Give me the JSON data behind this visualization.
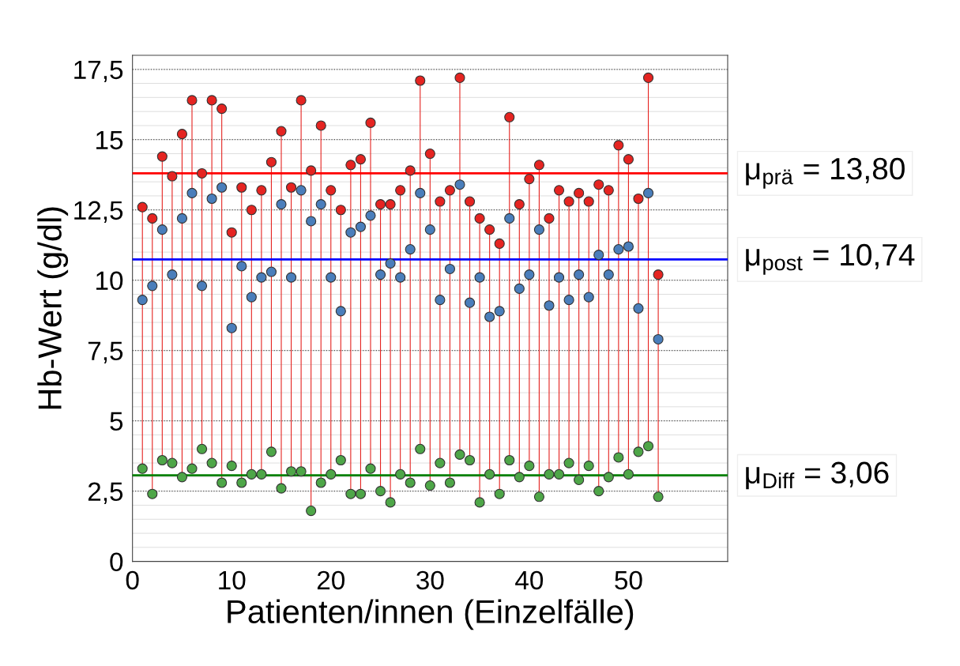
{
  "chart_data": {
    "type": "scatter",
    "xlabel": "Patienten/innen (Einzelfälle)",
    "ylabel": "Hb-Wert (g/dl)",
    "x": [
      1,
      2,
      3,
      4,
      5,
      6,
      7,
      8,
      9,
      10,
      11,
      12,
      13,
      14,
      15,
      16,
      17,
      18,
      19,
      20,
      21,
      22,
      23,
      24,
      25,
      26,
      27,
      28,
      29,
      30,
      31,
      32,
      33,
      34,
      35,
      36,
      37,
      38,
      39,
      40,
      41,
      42,
      43,
      44,
      45,
      46,
      47,
      48,
      49,
      50,
      51,
      52,
      53
    ],
    "series": [
      {
        "type": "lollipop",
        "color": "#e52421",
        "values": [
          12.6,
          12.2,
          14.4,
          13.7,
          15.2,
          16.4,
          13.8,
          16.4,
          16.1,
          11.7,
          13.3,
          12.5,
          13.2,
          14.2,
          15.3,
          13.3,
          16.4,
          13.9,
          15.5,
          13.2,
          12.5,
          14.1,
          14.3,
          15.6,
          12.7,
          12.7,
          13.2,
          13.9,
          17.1,
          14.5,
          12.8,
          13.2,
          17.2,
          12.8,
          12.2,
          11.8,
          11.3,
          15.8,
          12.7,
          13.6,
          14.1,
          12.2,
          13.2,
          12.8,
          13.1,
          12.8,
          13.4,
          13.2,
          14.8,
          14.3,
          12.9,
          17.2,
          10.2
        ]
      },
      {
        "color": "#4a7ebb",
        "values": [
          9.3,
          9.8,
          11.8,
          10.2,
          12.2,
          13.1,
          9.8,
          12.9,
          13.3,
          8.3,
          10.5,
          9.4,
          10.1,
          10.3,
          12.7,
          10.1,
          13.2,
          12.1,
          12.7,
          10.1,
          8.9,
          11.7,
          11.9,
          12.3,
          10.2,
          10.6,
          10.1,
          11.1,
          13.1,
          11.8,
          9.3,
          10.4,
          13.4,
          9.2,
          10.1,
          8.7,
          8.9,
          12.2,
          9.7,
          10.2,
          11.8,
          9.1,
          10.1,
          9.3,
          10.2,
          9.4,
          10.9,
          10.2,
          11.1,
          11.2,
          9.0,
          13.1,
          7.9
        ]
      },
      {
        "color": "#4ea648",
        "values": [
          3.3,
          2.4,
          3.6,
          3.5,
          3.0,
          3.3,
          4.0,
          3.5,
          2.8,
          3.4,
          2.8,
          3.1,
          3.1,
          3.9,
          2.6,
          3.2,
          3.2,
          1.8,
          2.8,
          3.1,
          3.6,
          2.4,
          2.4,
          3.3,
          2.5,
          2.1,
          3.1,
          2.8,
          4.0,
          2.7,
          3.5,
          2.8,
          3.8,
          3.6,
          2.1,
          3.1,
          2.4,
          3.6,
          3.0,
          3.4,
          2.3,
          3.1,
          3.1,
          3.5,
          2.9,
          3.4,
          2.5,
          3.0,
          3.7,
          3.1,
          3.9,
          4.1,
          2.3
        ]
      }
    ],
    "ref_lines": [
      {
        "axis": "y",
        "value": 13.8,
        "label": "μ$_{prä}$ = 13,80",
        "color": "#ff0000"
      },
      {
        "axis": "y",
        "value": 10.74,
        "label": "μ$_{post}$ = 10,74",
        "color": "#0000ff"
      },
      {
        "axis": "y",
        "value": 3.06,
        "label": "μ$_{Diff}$ = 3,06",
        "color": "#008000"
      }
    ],
    "xlim": [
      0,
      60
    ],
    "xticks": [
      0,
      10,
      20,
      30,
      40,
      50
    ],
    "ylim": [
      0,
      18
    ],
    "yticks": [
      0,
      {
        "value": 2.5,
        "label": "2,5"
      },
      5,
      {
        "value": 7.5,
        "label": "7,5"
      },
      10,
      {
        "value": 12.5,
        "label": "12,5"
      },
      15,
      {
        "value": 17.5,
        "label": "17,5"
      }
    ],
    "grid": "y",
    "marker": "circle"
  }
}
